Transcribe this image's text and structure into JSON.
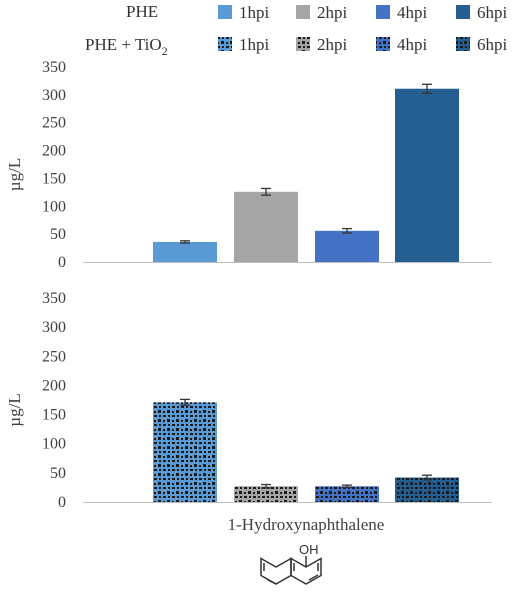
{
  "legend": {
    "row1_label": "PHE",
    "row2_label": "PHE + TiO",
    "row2_subscript": "2",
    "entries": [
      "1hpi",
      "2hpi",
      "4hpi",
      "6hpi"
    ]
  },
  "molecule": {
    "group_label": "OH"
  },
  "colors": [
    "#5b9bd5",
    "#a5a5a5",
    "#4472c4",
    "#255e91"
  ],
  "chart_data": [
    {
      "type": "bar",
      "title": "",
      "xlabel": "",
      "ylabel": "µg/L",
      "ylim": [
        0,
        350
      ],
      "yticks": [
        0,
        50,
        100,
        150,
        200,
        250,
        300,
        350
      ],
      "categories": [
        "1hpi",
        "2hpi",
        "4hpi",
        "6hpi"
      ],
      "series": [
        {
          "name": "PHE",
          "values": [
            36,
            126,
            56,
            311
          ],
          "errors": [
            2,
            6,
            4,
            8
          ]
        }
      ],
      "pattern": "solid",
      "grid": false
    },
    {
      "type": "bar",
      "title": "",
      "xlabel": "1-Hydroxynaphthalene",
      "ylabel": "µg/L",
      "ylim": [
        0,
        350
      ],
      "yticks": [
        0,
        50,
        100,
        150,
        200,
        250,
        300,
        350
      ],
      "categories": [
        "1hpi",
        "2hpi",
        "4hpi",
        "6hpi"
      ],
      "series": [
        {
          "name": "PHE + TiO2",
          "values": [
            171,
            27,
            27,
            42
          ],
          "errors": [
            5,
            3,
            2,
            4
          ]
        }
      ],
      "pattern": "dotted",
      "grid": false
    }
  ]
}
